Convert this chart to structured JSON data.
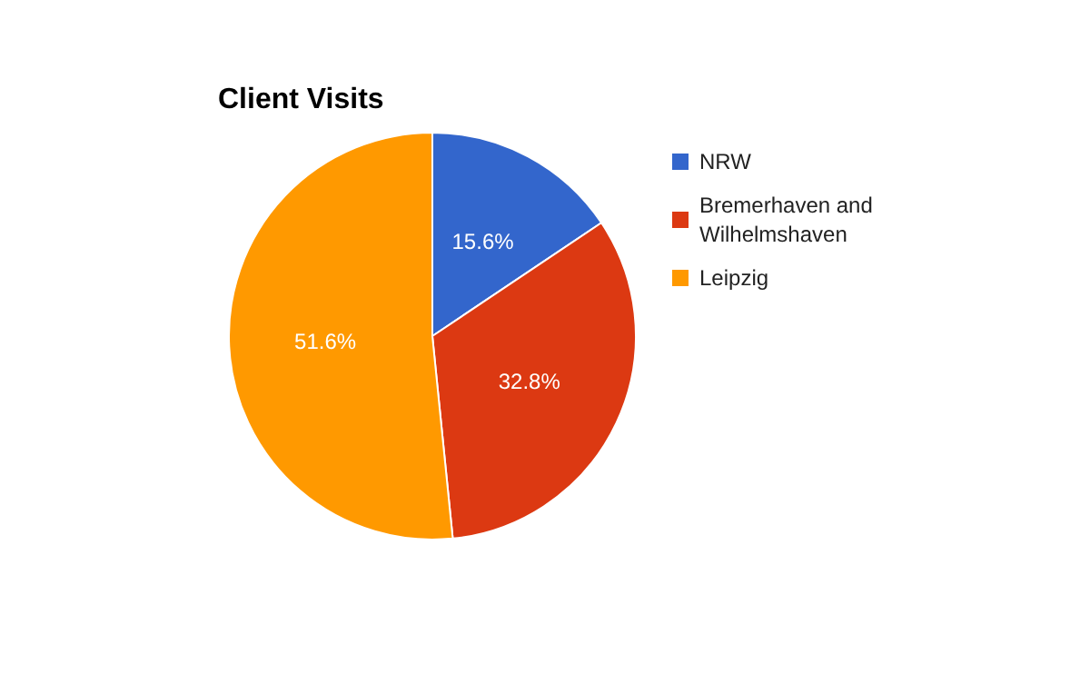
{
  "chart_data": {
    "type": "pie",
    "title": "Client Visits",
    "categories": [
      "NRW",
      "Bremerhaven and Wilhelmshaven",
      "Leipzig"
    ],
    "values": [
      15.6,
      32.8,
      51.6
    ],
    "colors": [
      "#3366cc",
      "#dc3912",
      "#ff9900"
    ],
    "value_labels": [
      "15.6%",
      "32.8%",
      "51.6%"
    ],
    "legend": "top right"
  }
}
